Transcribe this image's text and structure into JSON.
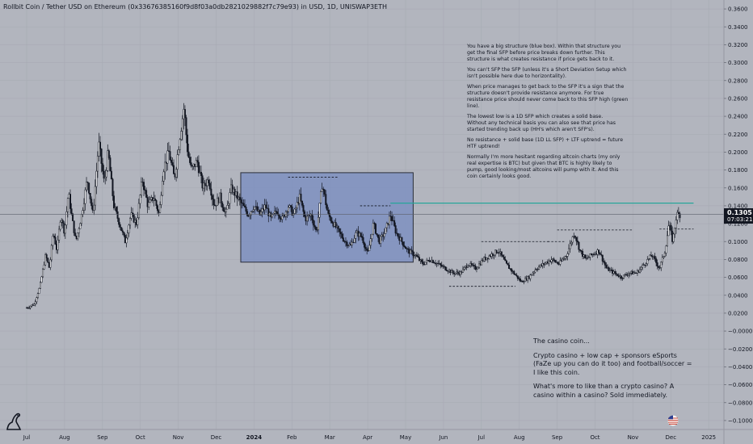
{
  "header": {
    "title": "Rollbit Coin / Tether USD on Ethereum (0x33676385160f9d8f03a0db2821029882f7c79e93) in USD, 1D, UNISWAP3ETH"
  },
  "chart_data": {
    "type": "candlestick",
    "symbol": "Rollbit Coin / Tether USD",
    "timeframe": "1D",
    "ylim": [
      -0.11,
      0.37
    ],
    "y_ticks": [
      "0.3600",
      "0.3400",
      "0.3200",
      "0.3000",
      "0.2800",
      "0.2600",
      "0.2400",
      "0.2200",
      "0.2000",
      "0.1800",
      "0.1600",
      "0.1400",
      "0.1200",
      "0.1000",
      "0.0800",
      "0.0600",
      "0.0400",
      "0.0200",
      "−0.0000",
      "−0.0200",
      "−0.0400",
      "−0.0600",
      "−0.0800",
      "−0.1000"
    ],
    "y_tick_values": [
      0.36,
      0.34,
      0.32,
      0.3,
      0.28,
      0.26,
      0.24,
      0.22,
      0.2,
      0.18,
      0.16,
      0.14,
      0.12,
      0.1,
      0.08,
      0.06,
      0.04,
      0.02,
      0.0,
      -0.02,
      -0.04,
      -0.06,
      -0.08,
      -0.1
    ],
    "x_ticks": [
      "Jul",
      "Aug",
      "Sep",
      "Oct",
      "Nov",
      "Dec",
      "2024",
      "Feb",
      "Mar",
      "Apr",
      "May",
      "Jun",
      "Jul",
      "Aug",
      "Sep",
      "Oct",
      "Nov",
      "Dec",
      "2025"
    ],
    "x_tick_months": [
      0,
      1,
      2,
      3,
      4,
      5,
      6,
      7,
      8,
      9,
      10,
      11,
      12,
      13,
      14,
      15,
      16,
      17,
      18
    ],
    "x_tick_bold": [
      false,
      false,
      false,
      false,
      false,
      false,
      true,
      false,
      false,
      false,
      false,
      false,
      false,
      false,
      false,
      false,
      false,
      false,
      false
    ],
    "price_path": [
      [
        0.0,
        0.026
      ],
      [
        0.2,
        0.03
      ],
      [
        0.35,
        0.05
      ],
      [
        0.5,
        0.085
      ],
      [
        0.6,
        0.07
      ],
      [
        0.7,
        0.11
      ],
      [
        0.8,
        0.09
      ],
      [
        0.9,
        0.13
      ],
      [
        1.0,
        0.11
      ],
      [
        1.1,
        0.155
      ],
      [
        1.2,
        0.125
      ],
      [
        1.3,
        0.1
      ],
      [
        1.45,
        0.13
      ],
      [
        1.6,
        0.17
      ],
      [
        1.75,
        0.13
      ],
      [
        1.9,
        0.21
      ],
      [
        2.05,
        0.165
      ],
      [
        2.15,
        0.2
      ],
      [
        2.3,
        0.14
      ],
      [
        2.45,
        0.12
      ],
      [
        2.6,
        0.1
      ],
      [
        2.75,
        0.13
      ],
      [
        2.9,
        0.12
      ],
      [
        3.05,
        0.17
      ],
      [
        3.2,
        0.14
      ],
      [
        3.35,
        0.15
      ],
      [
        3.5,
        0.13
      ],
      [
        3.6,
        0.18
      ],
      [
        3.75,
        0.2
      ],
      [
        3.9,
        0.17
      ],
      [
        4.05,
        0.22
      ],
      [
        4.15,
        0.25
      ],
      [
        4.25,
        0.2
      ],
      [
        4.35,
        0.18
      ],
      [
        4.5,
        0.19
      ],
      [
        4.65,
        0.16
      ],
      [
        4.8,
        0.17
      ],
      [
        4.95,
        0.14
      ],
      [
        5.1,
        0.15
      ],
      [
        5.25,
        0.13
      ],
      [
        5.4,
        0.16
      ],
      [
        5.55,
        0.15
      ],
      [
        5.7,
        0.14
      ],
      [
        5.85,
        0.13
      ],
      [
        6.0,
        0.14
      ],
      [
        6.15,
        0.13
      ],
      [
        6.3,
        0.14
      ],
      [
        6.45,
        0.125
      ],
      [
        6.6,
        0.135
      ],
      [
        6.75,
        0.125
      ],
      [
        6.9,
        0.14
      ],
      [
        7.05,
        0.13
      ],
      [
        7.2,
        0.15
      ],
      [
        7.35,
        0.125
      ],
      [
        7.5,
        0.13
      ],
      [
        7.65,
        0.11
      ],
      [
        7.8,
        0.165
      ],
      [
        7.95,
        0.13
      ],
      [
        8.1,
        0.12
      ],
      [
        8.25,
        0.11
      ],
      [
        8.4,
        0.1
      ],
      [
        8.55,
        0.095
      ],
      [
        8.7,
        0.11
      ],
      [
        8.85,
        0.105
      ],
      [
        9.0,
        0.085
      ],
      [
        9.15,
        0.12
      ],
      [
        9.3,
        0.1
      ],
      [
        9.45,
        0.11
      ],
      [
        9.6,
        0.13
      ],
      [
        9.75,
        0.11
      ],
      [
        9.9,
        0.1
      ],
      [
        10.05,
        0.09
      ],
      [
        10.25,
        0.085
      ],
      [
        10.45,
        0.075
      ],
      [
        10.65,
        0.08
      ],
      [
        10.85,
        0.075
      ],
      [
        11.05,
        0.07
      ],
      [
        11.25,
        0.065
      ],
      [
        11.45,
        0.065
      ],
      [
        11.65,
        0.075
      ],
      [
        11.85,
        0.07
      ],
      [
        12.05,
        0.08
      ],
      [
        12.25,
        0.085
      ],
      [
        12.45,
        0.09
      ],
      [
        12.65,
        0.075
      ],
      [
        12.85,
        0.065
      ],
      [
        13.05,
        0.055
      ],
      [
        13.25,
        0.06
      ],
      [
        13.45,
        0.07
      ],
      [
        13.65,
        0.075
      ],
      [
        13.85,
        0.08
      ],
      [
        14.05,
        0.075
      ],
      [
        14.25,
        0.085
      ],
      [
        14.45,
        0.11
      ],
      [
        14.6,
        0.09
      ],
      [
        14.75,
        0.08
      ],
      [
        14.9,
        0.085
      ],
      [
        15.1,
        0.09
      ],
      [
        15.3,
        0.07
      ],
      [
        15.5,
        0.065
      ],
      [
        15.7,
        0.06
      ],
      [
        15.9,
        0.065
      ],
      [
        16.1,
        0.065
      ],
      [
        16.3,
        0.075
      ],
      [
        16.5,
        0.085
      ],
      [
        16.7,
        0.07
      ],
      [
        16.85,
        0.09
      ],
      [
        16.95,
        0.12
      ],
      [
        17.05,
        0.1
      ],
      [
        17.15,
        0.13
      ],
      [
        17.25,
        0.1305
      ]
    ],
    "current_price": 0.1305,
    "time_to_close": "07:03:21",
    "current_month": 17.25,
    "price_line": 0.1305,
    "box": {
      "x0": 5.65,
      "x1": 10.2,
      "y0": 0.077,
      "y1": 0.177
    },
    "box_color": "#7b8ec0",
    "green_line": {
      "x0": 9.6,
      "x1": 17.6,
      "y": 0.143
    },
    "green_color": "#26a69a",
    "dashed_levels": [
      {
        "x0": 6.9,
        "x1": 8.2,
        "y": 0.172
      },
      {
        "x0": 8.8,
        "x1": 9.6,
        "y": 0.14
      },
      {
        "x0": 11.15,
        "x1": 12.9,
        "y": 0.05
      },
      {
        "x0": 12.0,
        "x1": 13.8,
        "y": 0.1
      },
      {
        "x0": 13.75,
        "x1": 14.2,
        "y": 0.1
      },
      {
        "x0": 14.0,
        "x1": 16.0,
        "y": 0.113
      },
      {
        "x0": 16.7,
        "x1": 17.6,
        "y": 0.114
      }
    ]
  },
  "annotations": {
    "note1": [
      "You have a big structure (blue box). Within that structure you get the final SFP before price breaks down further. This structure is what creates resistance if price gets back to it.",
      "You can't SFP the SFP (unless it's a Short Deviation Setup which isn't possible here due to horizontality).",
      "When price manages to get back to the SFP it's a sign that the structure doesn't provide resistance anymore. For true resistance price should never come back to this SFP high (green line).",
      "The lowest low is a 1D SFP which creates a solid base.\nWithout any technical basis you can also see that price has started trending back up (HH's which aren't SFP's).",
      "No resistance + solid base (1D LL SFP) + LTF uptrend = future HTF uptrend!",
      "Normally I'm more hesitant regarding altcoin charts (my only real expertise is BTC) but given that BTC is highly likely to pump, good looking/most altcoins will pump with it. And this coin certainly looks good."
    ],
    "note2": [
      "The casino coin...",
      "Crypto casino + low cap + sponsors eSports (FaZe up you can do it too) and football/soccer = I like this coin.",
      "What's more to like than a crypto casino? A casino within a casino? Sold immediately."
    ]
  },
  "colors": {
    "background": "#b2b5be",
    "candle": "#131722",
    "grid": "#a7aab3"
  }
}
